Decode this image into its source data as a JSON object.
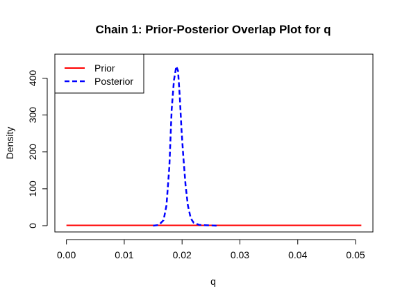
{
  "chart_data": {
    "type": "line",
    "title": "Chain 1: Prior-Posterior Overlap Plot for q",
    "xlabel": "q",
    "ylabel": "Density",
    "xlim": [
      -0.002,
      0.053
    ],
    "ylim": [
      -17,
      465
    ],
    "x_ticks": [
      0.0,
      0.01,
      0.02,
      0.03,
      0.04,
      0.05
    ],
    "x_tick_labels": [
      "0.00",
      "0.01",
      "0.02",
      "0.03",
      "0.04",
      "0.05"
    ],
    "y_ticks": [
      0,
      100,
      200,
      300,
      400
    ],
    "y_tick_labels": [
      "0",
      "100",
      "200",
      "300",
      "400"
    ],
    "legend": {
      "position": "top-left"
    },
    "grid": false,
    "series": [
      {
        "name": "Prior",
        "color": "#ff0000",
        "line_style": "solid",
        "x": [
          0.0,
          0.051
        ],
        "y": [
          1,
          1
        ]
      },
      {
        "name": "Posterior",
        "color": "#0000ff",
        "line_style": "dashed",
        "x": [
          0.015,
          0.016,
          0.0168,
          0.0173,
          0.0178,
          0.0182,
          0.0186,
          0.019,
          0.0193,
          0.0196,
          0.0199,
          0.0202,
          0.0206,
          0.021,
          0.0215,
          0.022,
          0.023,
          0.026
        ],
        "y": [
          0,
          2,
          15,
          55,
          160,
          315,
          395,
          432,
          420,
          350,
          260,
          190,
          110,
          55,
          20,
          8,
          2,
          0
        ]
      }
    ]
  }
}
